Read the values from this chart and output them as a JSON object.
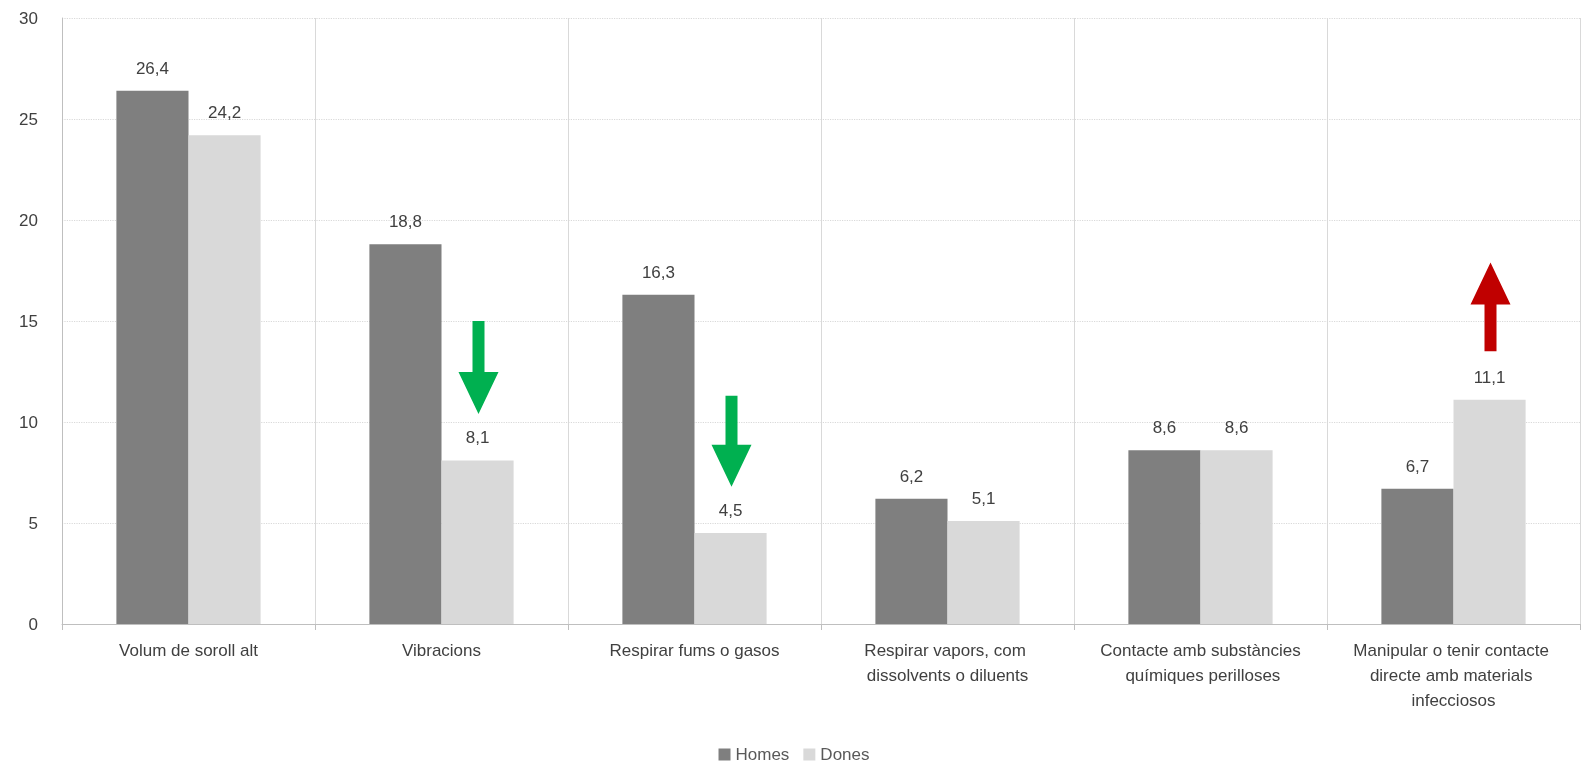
{
  "chart_data": {
    "type": "bar",
    "categories": [
      "Volum de soroll alt",
      "Vibracions",
      "Respirar fums o gasos",
      "Respirar vapors, com dissolvents o diluents",
      "Contacte amb substàncies químiques perilloses",
      "Manipular o tenir contacte directe amb materials infecciosos"
    ],
    "series": [
      {
        "name": "Homes",
        "color": "#7f7f7f",
        "values": [
          26.4,
          18.8,
          16.3,
          6.2,
          8.6,
          6.7
        ],
        "value_labels": [
          "26,4",
          "18,8",
          "16,3",
          "6,2",
          "8,6",
          "6,7"
        ]
      },
      {
        "name": "Dones",
        "color": "#d9d9d9",
        "values": [
          24.2,
          8.1,
          4.5,
          5.1,
          8.6,
          11.1
        ],
        "value_labels": [
          "24,2",
          "8,1",
          "4,5",
          "5,1",
          "8,6",
          "11,1"
        ]
      }
    ],
    "ylim": [
      0,
      30
    ],
    "yticks": [
      0,
      5,
      10,
      15,
      20,
      25,
      30
    ],
    "grid": true,
    "legend": "bottom"
  }
}
